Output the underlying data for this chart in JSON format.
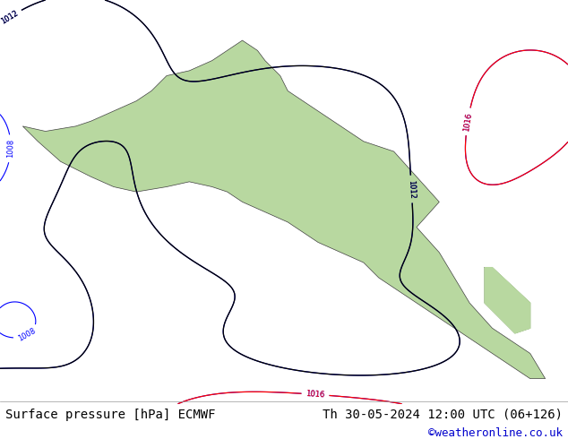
{
  "title_left": "Surface pressure [hPa] ECMWF",
  "title_right": "Th 30-05-2024 12:00 UTC (06+126)",
  "copyright": "©weatheronline.co.uk",
  "copyright_color": "#0000cc",
  "bg_color": "#e8e8e8",
  "map_bg_color": "#c8e6c8",
  "figsize": [
    6.34,
    4.9
  ],
  "dpi": 100,
  "footer_fontsize": 10,
  "copyright_fontsize": 9,
  "contour_blue_color": "#0000ff",
  "contour_red_color": "#ff0000",
  "contour_black_color": "#000000",
  "label_fontsize": 7,
  "footer_bg": "#e0e0e0"
}
